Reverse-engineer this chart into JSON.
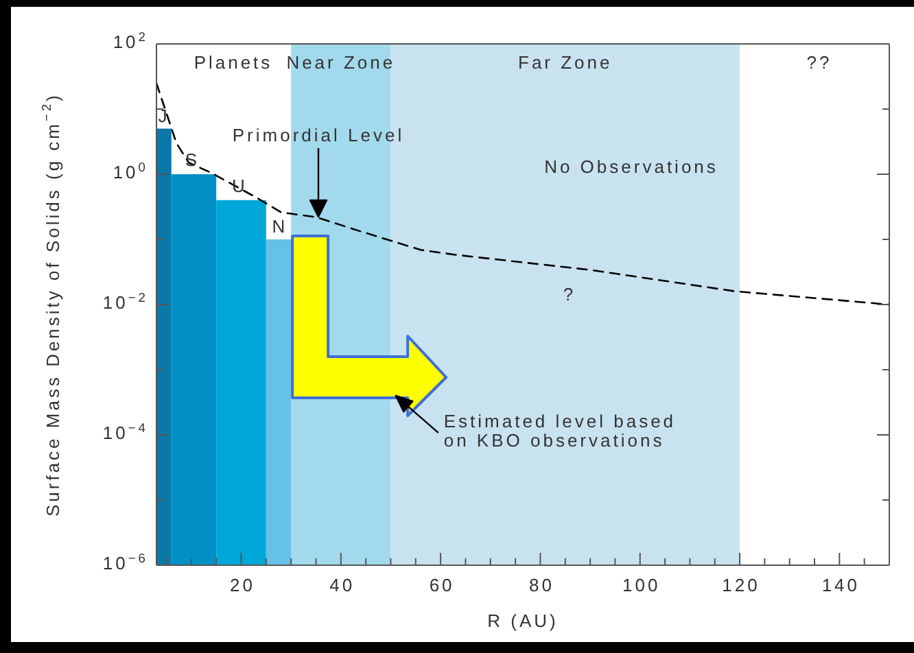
{
  "chart_data": {
    "type": "histogram",
    "xlabel": "R (AU)",
    "ylabel": "Surface Mass Density of Solids (g cm$^{−2}$)",
    "series": [
      {
        "bins": [
          3,
          6,
          15,
          25,
          30
        ],
        "values": [
          5,
          1,
          0.4,
          0.1
        ],
        "colors": [
          "#0a78a8",
          "#0090c5",
          "#00a8da",
          "#66c1e6"
        ]
      },
      {
        "type": "line",
        "x": [
          3,
          7,
          9.5,
          14,
          23,
          28,
          35,
          43,
          56,
          63,
          90,
          119,
          150
        ],
        "values": [
          25,
          3,
          1.5,
          1.05,
          0.44,
          0.26,
          0.22,
          0.14,
          0.069,
          0.058,
          0.034,
          0.016,
          0.01
        ],
        "color": "#000000",
        "line_style": "dashed"
      }
    ],
    "bands": [
      {
        "axis": "x",
        "from": 30,
        "to": 50,
        "label": "Near Zone",
        "color": "#a3d9ec"
      },
      {
        "axis": "x",
        "from": 50,
        "to": 120,
        "label": "Far Zone",
        "color": "#c9e2ef"
      }
    ],
    "annotations": [
      "Planets",
      "??",
      {
        "text": "J",
        "x": 4.5,
        "y": 5
      },
      {
        "text": "S",
        "x": 10.5,
        "y": 1
      },
      {
        "text": "U",
        "x": 20,
        "y": 0.4
      },
      {
        "text": "N",
        "x": 27.5,
        "y": 0.1
      },
      "Primordial Level",
      "No Observations",
      "?",
      {
        "text": "Estimated level based on KBO observations",
        "x": 51,
        "y": 0.0004
      }
    ],
    "xlim": [
      3,
      150
    ],
    "xticks": [
      {
        "value": 5,
        "label": null
      },
      {
        "value": 10,
        "label": null
      },
      {
        "value": 15,
        "label": null
      },
      20,
      {
        "value": 25,
        "label": null
      },
      {
        "value": 30,
        "label": null
      },
      {
        "value": 35,
        "label": null
      },
      40,
      {
        "value": 45,
        "label": null
      },
      {
        "value": 50,
        "label": null
      },
      {
        "value": 55,
        "label": null
      },
      60,
      {
        "value": 65,
        "label": null
      },
      {
        "value": 70,
        "label": null
      },
      {
        "value": 75,
        "label": null
      },
      80,
      {
        "value": 85,
        "label": null
      },
      {
        "value": 90,
        "label": null
      },
      {
        "value": 95,
        "label": null
      },
      100,
      {
        "value": 105,
        "label": null
      },
      {
        "value": 110,
        "label": null
      },
      {
        "value": 115,
        "label": null
      },
      120,
      {
        "value": 125,
        "label": null
      },
      {
        "value": 130,
        "label": null
      },
      {
        "value": 135,
        "label": null
      },
      140,
      {
        "value": 145,
        "label": null
      }
    ],
    "ylim": [
      1e-06,
      100
    ],
    "yticks": [
      {
        "value": 1e-06,
        "label": "10$^{−6}$"
      },
      {
        "value": 1e-05,
        "label": null
      },
      {
        "value": 0.0001,
        "label": "10$^{−4}$"
      },
      {
        "value": 0.001,
        "label": null
      },
      {
        "value": 0.01,
        "label": "10$^{−2}$"
      },
      {
        "value": 0.1,
        "label": null
      },
      {
        "value": 1,
        "label": "10$^{0}$"
      },
      {
        "value": 10,
        "label": null
      },
      {
        "value": 100,
        "label": "10$^{2}$"
      }
    ],
    "log": "y"
  }
}
